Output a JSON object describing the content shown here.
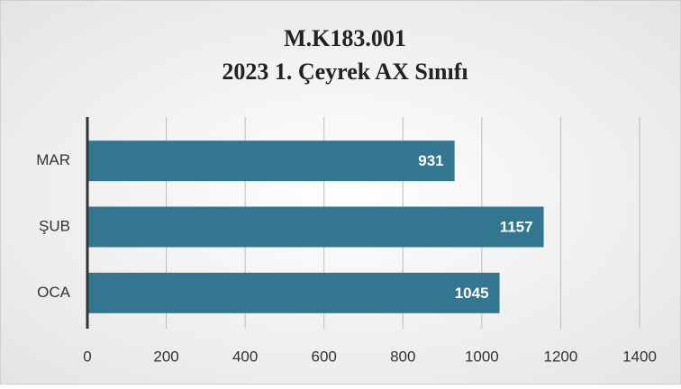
{
  "chart_data": {
    "type": "bar",
    "orientation": "horizontal",
    "title": "M.K183.001",
    "subtitle": "2023 1. Çeyrek AX Sınıfı",
    "categories": [
      "MAR",
      "ŞUB",
      "OCA"
    ],
    "values": [
      931,
      1157,
      1045
    ],
    "color": "#33768f",
    "xlim": [
      0,
      1400
    ],
    "xticks": [
      0,
      200,
      400,
      600,
      800,
      1000,
      1200,
      1400
    ],
    "grid": true
  }
}
